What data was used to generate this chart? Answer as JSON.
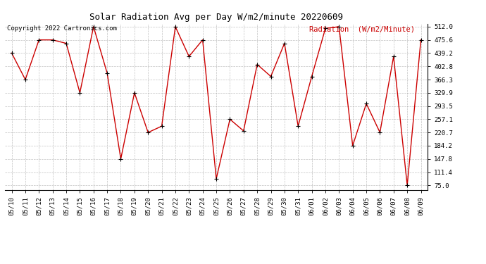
{
  "title": "Solar Radiation Avg per Day W/m2/minute 20220609",
  "copyright_text": "Copyright 2022 Cartronics.com",
  "legend_label": "Radiation  (W/m2/Minute)",
  "dates": [
    "05/10",
    "05/11",
    "05/12",
    "05/13",
    "05/14",
    "05/15",
    "05/16",
    "05/17",
    "05/18",
    "05/19",
    "05/20",
    "05/21",
    "05/22",
    "05/23",
    "05/24",
    "05/25",
    "05/26",
    "05/27",
    "05/28",
    "05/29",
    "05/30",
    "05/31",
    "06/01",
    "06/02",
    "06/03",
    "06/04",
    "06/05",
    "06/06",
    "06/07",
    "06/08",
    "06/09"
  ],
  "values": [
    439.2,
    366.3,
    475.6,
    475.6,
    466.0,
    329.9,
    512.0,
    384.0,
    147.8,
    329.9,
    220.7,
    238.0,
    512.0,
    430.0,
    475.6,
    93.0,
    257.1,
    225.0,
    408.0,
    375.0,
    466.0,
    238.0,
    375.0,
    507.0,
    512.0,
    184.2,
    300.0,
    220.7,
    430.0,
    75.0,
    475.6
  ],
  "ylim_min": 62.0,
  "ylim_max": 520.0,
  "yticks": [
    75.0,
    111.4,
    147.8,
    184.2,
    220.7,
    257.1,
    293.5,
    329.9,
    366.3,
    402.8,
    439.2,
    475.6,
    512.0
  ],
  "line_color": "#cc0000",
  "marker_color": "#000000",
  "background_color": "#ffffff",
  "grid_color": "#999999",
  "title_fontsize": 9,
  "copyright_fontsize": 6.5,
  "legend_fontsize": 7.5,
  "tick_fontsize": 6.5
}
